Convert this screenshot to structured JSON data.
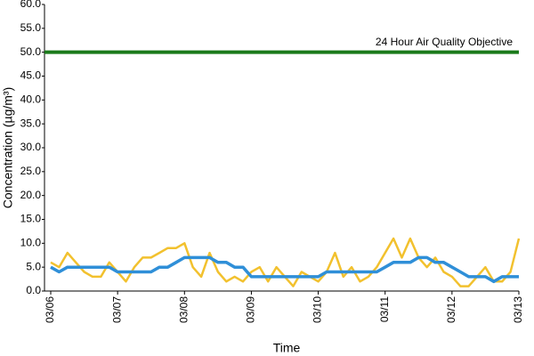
{
  "chart_data": {
    "type": "line",
    "y_label": "Concentration (µg/m³)",
    "x_label": "Time",
    "categories": [
      "03/06",
      null,
      null,
      null,
      null,
      null,
      null,
      null,
      "03/07",
      null,
      null,
      null,
      null,
      null,
      null,
      null,
      "03/08",
      null,
      null,
      null,
      null,
      null,
      null,
      null,
      "03/09",
      null,
      null,
      null,
      null,
      null,
      null,
      null,
      "03/10",
      null,
      null,
      null,
      null,
      null,
      null,
      null,
      "03/11",
      null,
      null,
      null,
      null,
      null,
      null,
      null,
      "03/12",
      null,
      null,
      null,
      null,
      null,
      null,
      null,
      "03/13"
    ],
    "series": [
      {
        "color": "#f2c12e",
        "values": [
          6,
          5,
          8,
          6,
          4,
          3,
          3,
          6,
          4,
          2,
          5,
          7,
          7,
          8,
          9,
          9,
          10,
          5,
          3,
          8,
          4,
          2,
          3,
          2,
          4,
          5,
          2,
          5,
          3,
          1,
          4,
          3,
          2,
          4,
          8,
          3,
          5,
          2,
          3,
          5,
          8,
          11,
          7,
          11,
          7,
          5,
          7,
          4,
          3,
          1,
          1,
          3,
          5,
          2,
          2,
          4,
          11
        ]
      },
      {
        "color": "#2f8fd8",
        "values": [
          5,
          4,
          5,
          5,
          5,
          5,
          5,
          5,
          4,
          4,
          4,
          4,
          4,
          5,
          5,
          6,
          7,
          7,
          7,
          7,
          6,
          6,
          5,
          5,
          3,
          3,
          3,
          3,
          3,
          3,
          3,
          3,
          3,
          4,
          4,
          4,
          4,
          4,
          4,
          4,
          5,
          6,
          6,
          6,
          7,
          7,
          6,
          6,
          5,
          4,
          3,
          3,
          3,
          2,
          3,
          3,
          3
        ]
      }
    ],
    "objective": {
      "value": 50,
      "label": "24 Hour Air Quality Objective",
      "color": "#1a7a1a"
    },
    "ylim": [
      0,
      60
    ],
    "yticks": [
      {
        "value": 0,
        "label": "0.0"
      },
      {
        "value": 5,
        "label": "5.0"
      },
      {
        "value": 10,
        "label": "10.0"
      },
      {
        "value": 15,
        "label": "15.0"
      },
      {
        "value": 20,
        "label": "20.0"
      },
      {
        "value": 25,
        "label": "25.0"
      },
      {
        "value": 30,
        "label": "30.0"
      },
      {
        "value": 35,
        "label": "35.0"
      },
      {
        "value": 40,
        "label": "40.0"
      },
      {
        "value": 45,
        "label": "45.0"
      },
      {
        "value": 50,
        "label": "50.0"
      },
      {
        "value": 55,
        "label": "55.0"
      },
      {
        "value": 60,
        "label": "60.0"
      }
    ],
    "grid": false
  }
}
